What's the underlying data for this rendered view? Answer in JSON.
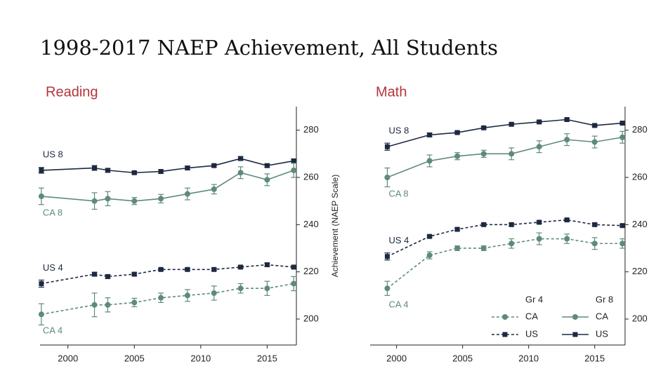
{
  "title": "1998-2017 NAEP Achievement, All Students",
  "axis_label": "Achievement (NAEP Scale)",
  "chart_data": [
    {
      "type": "line",
      "title": "Reading",
      "x": [
        1998,
        2002,
        2003,
        2005,
        2007,
        2009,
        2011,
        2013,
        2015,
        2017
      ],
      "xlim": [
        1997.9,
        2017.2
      ],
      "xticks": [
        2000,
        2005,
        2010,
        2015
      ],
      "ylim": [
        189,
        290
      ],
      "yticks": [
        200,
        220,
        240,
        260,
        280
      ],
      "series": [
        {
          "name": "US 8",
          "color": "#1c2940",
          "dashed": false,
          "marker": "square",
          "values": [
            263,
            264,
            263,
            262,
            262.5,
            264,
            265,
            268,
            265,
            267
          ],
          "errors": [
            1.2,
            1,
            0.8,
            0.5,
            0.8,
            0.8,
            0.6,
            0.8,
            0.7,
            0.8
          ]
        },
        {
          "name": "CA 8",
          "color": "#5e8b78",
          "dashed": false,
          "marker": "circle",
          "values": [
            252,
            250,
            251,
            250,
            251,
            253,
            255,
            262,
            259,
            263
          ],
          "errors": [
            3.5,
            3.5,
            3,
            1.5,
            1.8,
            2.5,
            2,
            2.5,
            2.5,
            3
          ]
        },
        {
          "name": "US 4",
          "color": "#1c2940",
          "dashed": true,
          "marker": "square",
          "values": [
            215,
            219,
            218,
            219,
            221,
            221,
            221,
            222,
            223,
            222
          ],
          "errors": [
            1.5,
            0.8,
            0.8,
            0.5,
            0.5,
            0.5,
            0.5,
            0.5,
            0.7,
            0.5
          ]
        },
        {
          "name": "CA 4",
          "color": "#5e8b78",
          "dashed": true,
          "marker": "circle",
          "values": [
            202,
            206,
            206,
            207,
            209,
            210,
            211,
            213,
            213,
            215
          ],
          "errors": [
            4.5,
            5,
            3,
            1.8,
            2,
            2.5,
            3,
            2,
            3,
            3
          ]
        }
      ]
    },
    {
      "type": "line",
      "title": "Math",
      "x": [
        1999.3,
        2002.5,
        2004.6,
        2006.6,
        2008.7,
        2010.8,
        2012.9,
        2015,
        2017.1
      ],
      "xlim": [
        1998,
        2017.3
      ],
      "xticks": [
        2000,
        2005,
        2010,
        2015
      ],
      "ylim": [
        189,
        290
      ],
      "yticks": [
        200,
        220,
        240,
        260,
        280
      ],
      "series": [
        {
          "name": "US 8",
          "color": "#1c2940",
          "dashed": false,
          "marker": "square",
          "values": [
            273,
            278,
            279,
            281,
            282.5,
            283.5,
            284.5,
            282,
            283
          ],
          "errors": [
            1.5,
            0.8,
            0.5,
            0.5,
            0.5,
            0.5,
            0.5,
            0.5,
            0.5
          ]
        },
        {
          "name": "CA 8",
          "color": "#5e8b78",
          "dashed": false,
          "marker": "circle",
          "values": [
            260,
            267,
            269,
            270,
            270,
            273,
            276,
            275,
            277
          ],
          "errors": [
            4,
            2.5,
            1.5,
            1.5,
            2.5,
            2.5,
            2.5,
            2.5,
            2.5
          ]
        },
        {
          "name": "US 4",
          "color": "#1c2940",
          "dashed": true,
          "marker": "square",
          "values": [
            226.5,
            235,
            238,
            240,
            240,
            241,
            242,
            240,
            239.6
          ],
          "errors": [
            1.5,
            0.5,
            0.5,
            0.5,
            0.5,
            0.5,
            0.5,
            0.5,
            0.5
          ]
        },
        {
          "name": "CA 4",
          "color": "#5e8b78",
          "dashed": true,
          "marker": "circle",
          "values": [
            213,
            227,
            230,
            230,
            232,
            234,
            234,
            232,
            232
          ],
          "errors": [
            3,
            1.5,
            1,
            1,
            2,
            2.5,
            2,
            2.5,
            2
          ]
        }
      ],
      "legend": [
        {
          "title": "Gr 4",
          "entries": [
            "CA",
            "US"
          ]
        },
        {
          "title": "Gr 8",
          "entries": [
            "CA",
            "US"
          ]
        }
      ]
    }
  ]
}
